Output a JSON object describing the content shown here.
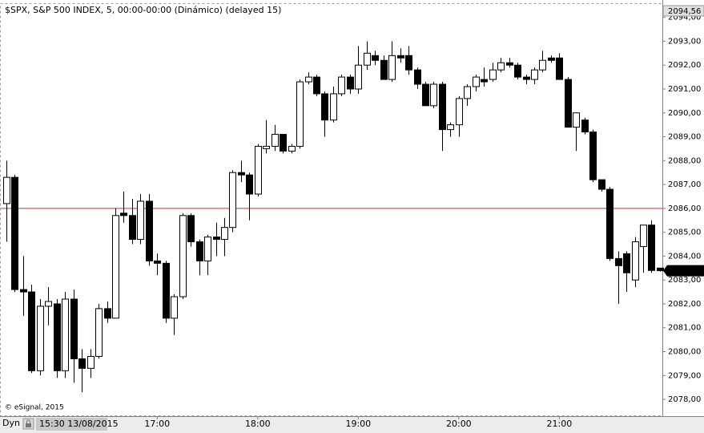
{
  "chart_data": {
    "type": "candlestick",
    "title": "$SPX, S&P 500 INDEX, 5, 00:00-00:00 (Dinámico) (delayed 15)",
    "credit": "© eSignal, 2015",
    "mode_label": "Dyn",
    "start_label": "15:30 13/08/2015",
    "x": [
      "15:30",
      "15:35",
      "15:40",
      "15:45",
      "15:50",
      "15:55",
      "16:00",
      "16:05",
      "16:10",
      "16:15",
      "16:20",
      "16:25",
      "16:30",
      "16:35",
      "16:40",
      "16:45",
      "16:50",
      "16:55",
      "17:00",
      "17:05",
      "17:10",
      "17:15",
      "17:20",
      "17:25",
      "17:30",
      "17:35",
      "17:40",
      "17:45",
      "17:50",
      "17:55",
      "18:00",
      "18:05",
      "18:10",
      "18:15",
      "18:20",
      "18:25",
      "18:30",
      "18:35",
      "18:40",
      "18:45",
      "18:50",
      "18:55",
      "19:00",
      "19:05",
      "19:10",
      "19:15",
      "19:20",
      "19:25",
      "19:30",
      "19:35",
      "19:40",
      "19:45",
      "19:50",
      "19:55",
      "20:00",
      "20:05",
      "20:10",
      "20:15",
      "20:20",
      "20:25",
      "20:30",
      "20:35",
      "20:40",
      "20:45",
      "20:50",
      "20:55",
      "21:00",
      "21:05",
      "21:10",
      "21:15",
      "21:20",
      "21:25",
      "21:30",
      "21:35",
      "21:40",
      "21:45",
      "21:50",
      "21:55",
      "22:00"
    ],
    "open": [
      2086.2,
      2087.3,
      2082.6,
      2082.5,
      2079.2,
      2081.9,
      2082.0,
      2079.2,
      2082.2,
      2079.7,
      2079.3,
      2079.8,
      2081.8,
      2081.4,
      2085.8,
      2085.7,
      2084.7,
      2086.3,
      2083.8,
      2083.7,
      2081.4,
      2082.3,
      2085.7,
      2084.6,
      2083.8,
      2084.8,
      2084.7,
      2085.2,
      2087.5,
      2087.4,
      2086.6,
      2088.5,
      2088.6,
      2089.1,
      2088.4,
      2088.6,
      2091.3,
      2091.5,
      2090.8,
      2089.7,
      2090.8,
      2091.5,
      2091.0,
      2092.0,
      2092.4,
      2092.2,
      2091.4,
      2092.4,
      2092.4,
      2091.8,
      2091.2,
      2090.3,
      2091.2,
      2089.3,
      2089.5,
      2090.6,
      2091.1,
      2091.4,
      2091.4,
      2091.8,
      2092.1,
      2092.0,
      2091.5,
      2091.4,
      2091.8,
      2092.3,
      2092.3,
      2091.4,
      2089.4,
      2089.7,
      2089.2,
      2087.2,
      2086.8,
      2083.9,
      2084.1,
      2083.0,
      2084.4,
      2085.3,
      2083.5
    ],
    "high": [
      2088.0,
      2087.4,
      2084.0,
      2082.8,
      2082.2,
      2082.7,
      2082.2,
      2082.5,
      2082.6,
      2080.1,
      2080.1,
      2082.0,
      2082.1,
      2086.0,
      2086.7,
      2086.4,
      2086.6,
      2086.6,
      2084.1,
      2083.8,
      2082.4,
      2085.8,
      2085.8,
      2084.7,
      2084.9,
      2085.4,
      2085.6,
      2087.6,
      2088.0,
      2087.5,
      2088.7,
      2089.7,
      2089.5,
      2089.1,
      2088.7,
      2091.4,
      2091.7,
      2091.6,
      2090.9,
      2091.1,
      2091.6,
      2091.6,
      2092.8,
      2093.0,
      2092.6,
      2092.4,
      2093.0,
      2092.7,
      2092.8,
      2091.9,
      2091.3,
      2091.3,
      2091.3,
      2089.6,
      2090.7,
      2091.2,
      2091.6,
      2091.9,
      2092.1,
      2092.3,
      2092.3,
      2092.1,
      2091.6,
      2091.9,
      2092.6,
      2092.4,
      2092.5,
      2091.5,
      2090.0,
      2089.8,
      2089.3,
      2087.2,
      2086.9,
      2084.2,
      2084.2,
      2084.8,
      2085.3,
      2085.5,
      2083.5
    ],
    "low": [
      2084.6,
      2082.5,
      2081.5,
      2079.1,
      2079.0,
      2081.1,
      2078.9,
      2078.9,
      2078.7,
      2078.3,
      2078.9,
      2079.7,
      2081.2,
      2081.4,
      2085.4,
      2084.5,
      2084.5,
      2083.6,
      2083.2,
      2081.2,
      2080.7,
      2082.2,
      2084.4,
      2083.2,
      2083.2,
      2084.0,
      2084.0,
      2085.0,
      2087.1,
      2085.5,
      2086.5,
      2088.3,
      2088.4,
      2088.3,
      2088.3,
      2088.5,
      2091.2,
      2090.7,
      2089.0,
      2089.6,
      2090.7,
      2090.8,
      2090.8,
      2091.8,
      2092.0,
      2091.4,
      2091.3,
      2092.1,
      2091.6,
      2091.0,
      2090.3,
      2090.2,
      2088.4,
      2089.0,
      2089.0,
      2090.3,
      2090.9,
      2091.1,
      2091.3,
      2091.7,
      2091.9,
      2091.4,
      2091.2,
      2091.2,
      2091.7,
      2092.1,
      2091.4,
      2089.4,
      2088.4,
      2089.1,
      2087.1,
      2086.7,
      2083.8,
      2082.0,
      2082.5,
      2082.7,
      2083.3,
      2083.3,
      2083.35
    ],
    "close": [
      2087.3,
      2082.6,
      2082.5,
      2079.2,
      2081.9,
      2082.1,
      2079.2,
      2082.2,
      2079.7,
      2079.3,
      2079.8,
      2081.8,
      2081.4,
      2085.7,
      2085.7,
      2084.7,
      2086.3,
      2083.8,
      2083.7,
      2081.4,
      2082.3,
      2085.7,
      2084.6,
      2083.8,
      2084.8,
      2084.7,
      2085.2,
      2087.5,
      2087.4,
      2086.6,
      2088.6,
      2088.6,
      2089.1,
      2088.4,
      2088.6,
      2091.3,
      2091.5,
      2090.8,
      2089.7,
      2090.8,
      2091.5,
      2091.0,
      2092.0,
      2092.5,
      2092.2,
      2091.4,
      2092.4,
      2092.3,
      2091.8,
      2091.2,
      2090.3,
      2091.2,
      2089.3,
      2089.5,
      2090.6,
      2091.1,
      2091.5,
      2091.3,
      2091.8,
      2092.1,
      2092.0,
      2091.5,
      2091.4,
      2091.8,
      2092.2,
      2092.2,
      2091.4,
      2089.4,
      2090.0,
      2089.2,
      2087.2,
      2086.8,
      2083.9,
      2083.6,
      2083.3,
      2084.6,
      2085.3,
      2083.4,
      2083.39
    ],
    "up_color": "#ffffff",
    "down_color": "#000000",
    "outline_color": "#000000",
    "reference_line": {
      "value": 2086.0,
      "color": "#c0392b"
    },
    "last_price": {
      "value": 2083.39,
      "label": "2083,39"
    },
    "ylim": [
      2077.33,
      2094.56
    ],
    "top_label": {
      "value": 2094.56,
      "label": "2094,56"
    },
    "yticks": [
      {
        "value": 2078,
        "label": "2078,00"
      },
      {
        "value": 2079,
        "label": "2079,00"
      },
      {
        "value": 2080,
        "label": "2080,00"
      },
      {
        "value": 2081,
        "label": "2081,00"
      },
      {
        "value": 2082,
        "label": "2082,00"
      },
      {
        "value": 2083,
        "label": "2083,00"
      },
      {
        "value": 2084,
        "label": "2084,00"
      },
      {
        "value": 2085,
        "label": "2085,00"
      },
      {
        "value": 2086,
        "label": "2086,00"
      },
      {
        "value": 2087,
        "label": "2087,00"
      },
      {
        "value": 2088,
        "label": "2088,00"
      },
      {
        "value": 2089,
        "label": "2089,00"
      },
      {
        "value": 2090,
        "label": "2090,00"
      },
      {
        "value": 2091,
        "label": "2091,00"
      },
      {
        "value": 2092,
        "label": "2092,00"
      },
      {
        "value": 2093,
        "label": "2093,00"
      },
      {
        "value": 2094,
        "label": "2094,00"
      }
    ],
    "xticks": [
      "17:00",
      "18:00",
      "19:00",
      "20:00",
      "21:00"
    ]
  }
}
